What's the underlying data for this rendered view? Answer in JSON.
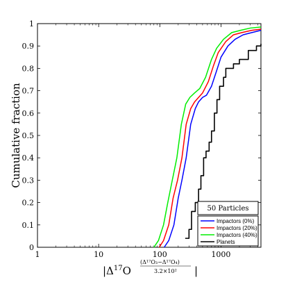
{
  "chart_data": {
    "type": "line",
    "xscale": "log",
    "xlim": [
      1,
      4500
    ],
    "ylim": [
      0,
      1
    ],
    "xticks": [
      1,
      10,
      100,
      1000
    ],
    "xtick_labels": [
      "1",
      "10",
      "100",
      "1000"
    ],
    "yticks": [
      0,
      0.1,
      0.2,
      0.3,
      0.4,
      0.5,
      0.6,
      0.7,
      0.8,
      0.9,
      1
    ],
    "ytick_labels": [
      "0",
      "0.1",
      "0.2",
      "0.3",
      "0.4",
      "0.5",
      "0.6",
      "0.7",
      "0.8",
      "0.9",
      "1"
    ],
    "ylabel": "Cumulative fraction",
    "xlabel": {
      "prefix": "|Δ",
      "sup1": "17",
      "main": "O",
      "num": "(Δ¹⁷O₃−Δ¹⁷O₄)",
      "den": "3.2×10²",
      "suffix": "|"
    },
    "legend": {
      "title": "50 Particles",
      "position": "bottom-right"
    },
    "series": [
      {
        "name": "Impactors (0%)",
        "color": "#0000ff",
        "step": false,
        "points": [
          [
            118,
            0
          ],
          [
            140,
            0.03
          ],
          [
            170,
            0.1
          ],
          [
            200,
            0.22
          ],
          [
            230,
            0.3
          ],
          [
            270,
            0.4
          ],
          [
            320,
            0.55
          ],
          [
            380,
            0.62
          ],
          [
            430,
            0.65
          ],
          [
            500,
            0.67
          ],
          [
            580,
            0.68
          ],
          [
            700,
            0.72
          ],
          [
            850,
            0.79
          ],
          [
            1000,
            0.85
          ],
          [
            1300,
            0.9
          ],
          [
            1700,
            0.93
          ],
          [
            2300,
            0.95
          ],
          [
            3200,
            0.96
          ],
          [
            4500,
            0.97
          ]
        ]
      },
      {
        "name": "Impactors (20%)",
        "color": "#ff0000",
        "step": false,
        "points": [
          [
            98,
            0
          ],
          [
            115,
            0.03
          ],
          [
            140,
            0.1
          ],
          [
            165,
            0.22
          ],
          [
            195,
            0.3
          ],
          [
            230,
            0.4
          ],
          [
            270,
            0.55
          ],
          [
            320,
            0.62
          ],
          [
            370,
            0.65
          ],
          [
            430,
            0.67
          ],
          [
            500,
            0.69
          ],
          [
            620,
            0.74
          ],
          [
            750,
            0.81
          ],
          [
            900,
            0.87
          ],
          [
            1200,
            0.92
          ],
          [
            1600,
            0.95
          ],
          [
            2200,
            0.96
          ],
          [
            3200,
            0.97
          ],
          [
            4500,
            0.975
          ]
        ]
      },
      {
        "name": "Impactors (40%)",
        "color": "#00ee00",
        "step": false,
        "points": [
          [
            80,
            0
          ],
          [
            95,
            0.03
          ],
          [
            115,
            0.1
          ],
          [
            135,
            0.2
          ],
          [
            160,
            0.3
          ],
          [
            190,
            0.4
          ],
          [
            225,
            0.55
          ],
          [
            265,
            0.64
          ],
          [
            310,
            0.67
          ],
          [
            370,
            0.69
          ],
          [
            450,
            0.71
          ],
          [
            560,
            0.76
          ],
          [
            700,
            0.84
          ],
          [
            850,
            0.89
          ],
          [
            1100,
            0.93
          ],
          [
            1500,
            0.96
          ],
          [
            2100,
            0.97
          ],
          [
            3000,
            0.98
          ],
          [
            4500,
            0.985
          ]
        ]
      },
      {
        "name": "Planets",
        "color": "#000000",
        "step": true,
        "points": [
          [
            260,
            0.04
          ],
          [
            300,
            0.08
          ],
          [
            330,
            0.16
          ],
          [
            380,
            0.2
          ],
          [
            430,
            0.26
          ],
          [
            470,
            0.32
          ],
          [
            520,
            0.4
          ],
          [
            570,
            0.43
          ],
          [
            640,
            0.47
          ],
          [
            700,
            0.52
          ],
          [
            780,
            0.6
          ],
          [
            860,
            0.66
          ],
          [
            950,
            0.72
          ],
          [
            1100,
            0.76
          ],
          [
            1200,
            0.8
          ],
          [
            1600,
            0.82
          ],
          [
            2000,
            0.84
          ],
          [
            2700,
            0.84
          ],
          [
            2800,
            0.88
          ],
          [
            3800,
            0.9
          ],
          [
            4500,
            0.91
          ]
        ]
      }
    ]
  }
}
